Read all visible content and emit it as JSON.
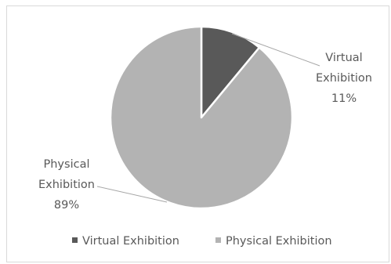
{
  "chart_data": {
    "type": "pie",
    "title": "",
    "slices": [
      {
        "name": "Virtual Exhibition",
        "value": 11,
        "label_line1": "Virtual",
        "label_line2": "Exhibition",
        "label_value": "11%",
        "color": "#595959"
      },
      {
        "name": "Physical Exhibition",
        "value": 89,
        "label_line1": "Physical",
        "label_line2": "Exhibition",
        "label_value": "89%",
        "color": "#b3b3b3"
      }
    ],
    "legend": {
      "position": "bottom",
      "items": [
        "Virtual Exhibition",
        "Physical Exhibition"
      ]
    }
  }
}
